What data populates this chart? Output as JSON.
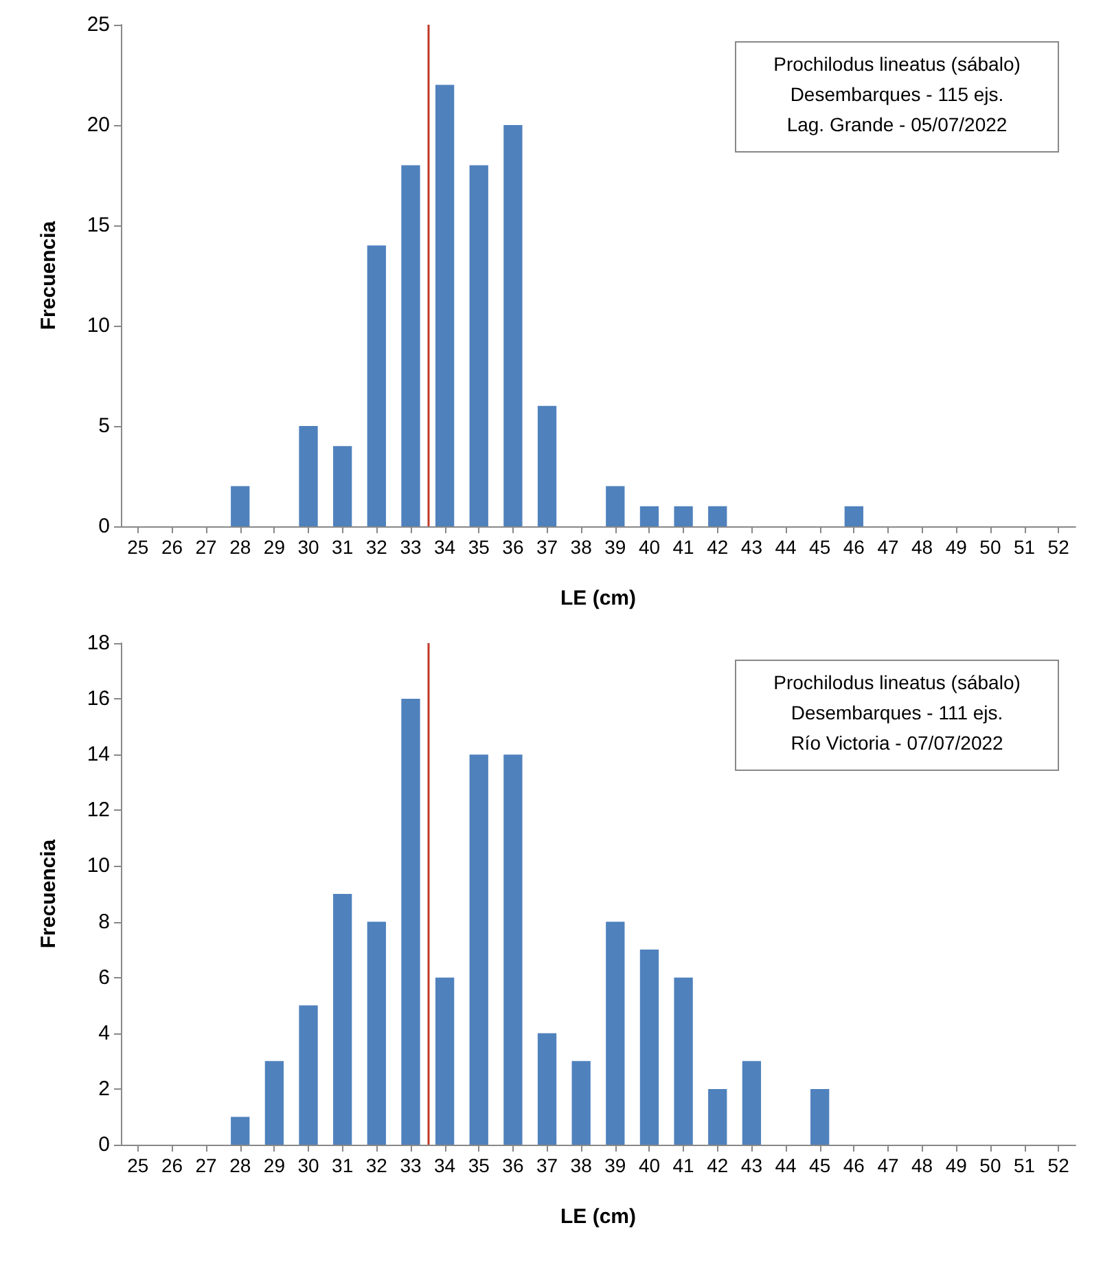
{
  "chart_data": [
    {
      "type": "bar",
      "xlabel": "LE (cm)",
      "ylabel": "Frecuencia",
      "color": "#4f81bd",
      "x": [
        25,
        26,
        27,
        28,
        29,
        30,
        31,
        32,
        33,
        34,
        35,
        36,
        37,
        38,
        39,
        40,
        41,
        42,
        43,
        44,
        45,
        46,
        47,
        48,
        49,
        50,
        51,
        52
      ],
      "values": [
        0,
        0,
        0,
        2,
        0,
        5,
        4,
        14,
        18,
        22,
        18,
        20,
        6,
        0,
        2,
        1,
        1,
        1,
        0,
        0,
        0,
        1,
        0,
        0,
        0,
        0,
        0,
        0
      ],
      "xlim": [
        24.5,
        52.5
      ],
      "xticks": [
        25,
        26,
        27,
        28,
        29,
        30,
        31,
        32,
        33,
        34,
        35,
        36,
        37,
        38,
        39,
        40,
        41,
        42,
        43,
        44,
        45,
        46,
        47,
        48,
        49,
        50,
        51,
        52
      ],
      "ylim": [
        0,
        25
      ],
      "yticks": [
        0,
        5,
        10,
        15,
        20,
        25
      ],
      "ref_lines": [
        {
          "axis": "x",
          "value": 33.5,
          "color": "#c0392b"
        }
      ],
      "annotations": [
        "Prochilodus lineatus (sábalo)",
        "Desembarques - 115 ejs.",
        "Lag. Grande - 05/07/2022"
      ]
    },
    {
      "type": "bar",
      "xlabel": "LE (cm)",
      "ylabel": "Frecuencia",
      "color": "#4f81bd",
      "x": [
        25,
        26,
        27,
        28,
        29,
        30,
        31,
        32,
        33,
        34,
        35,
        36,
        37,
        38,
        39,
        40,
        41,
        42,
        43,
        44,
        45,
        46,
        47,
        48,
        49,
        50,
        51,
        52
      ],
      "values": [
        0,
        0,
        0,
        1,
        3,
        5,
        9,
        8,
        16,
        6,
        14,
        14,
        4,
        3,
        8,
        7,
        6,
        2,
        3,
        0,
        2,
        0,
        0,
        0,
        0,
        0,
        0,
        0
      ],
      "xlim": [
        24.5,
        52.5
      ],
      "xticks": [
        25,
        26,
        27,
        28,
        29,
        30,
        31,
        32,
        33,
        34,
        35,
        36,
        37,
        38,
        39,
        40,
        41,
        42,
        43,
        44,
        45,
        46,
        47,
        48,
        49,
        50,
        51,
        52
      ],
      "ylim": [
        0,
        18
      ],
      "yticks": [
        0,
        2,
        4,
        6,
        8,
        10,
        12,
        14,
        16,
        18
      ],
      "ref_lines": [
        {
          "axis": "x",
          "value": 33.5,
          "color": "#c0392b"
        }
      ],
      "annotations": [
        "Prochilodus lineatus (sábalo)",
        "Desembarques - 111 ejs.",
        "Río Victoria - 07/07/2022"
      ]
    }
  ]
}
